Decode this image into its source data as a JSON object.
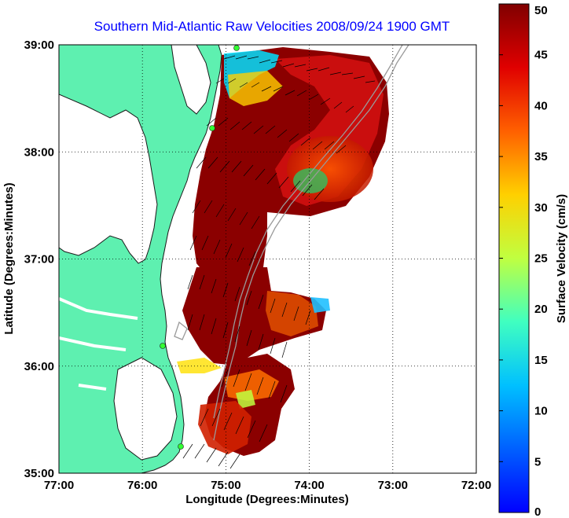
{
  "title": "Southern Mid-Atlantic Raw Velocities 2008/09/24 1900 GMT",
  "chart_data": {
    "type": "heatmap",
    "title": "Southern Mid-Atlantic Raw Velocities 2008/09/24 1900 GMT",
    "xlabel": "Longitude (Degrees:Minutes)",
    "ylabel": "Latitude (Degrees:Minutes)",
    "x_ticks": [
      "77:00",
      "76:00",
      "75:00",
      "74:00",
      "73:00",
      "72:00"
    ],
    "y_ticks": [
      "39:00",
      "38:00",
      "37:00",
      "36:00",
      "35:00"
    ],
    "xlim": [
      -77,
      -72
    ],
    "ylim": [
      35,
      39
    ],
    "grid": true,
    "colorbar": {
      "label": "Surface Velocity (cm/s)",
      "range": [
        0,
        50
      ],
      "ticks": [
        "50",
        "45",
        "40",
        "35",
        "30",
        "25",
        "20",
        "15",
        "10",
        "5",
        "0"
      ]
    },
    "colors": {
      "land": "#5ef0b0",
      "coast": "#1a1a1a",
      "title": "#0000ff",
      "bathymetry": "#9a9a9a",
      "station": "#33ff33"
    }
  }
}
